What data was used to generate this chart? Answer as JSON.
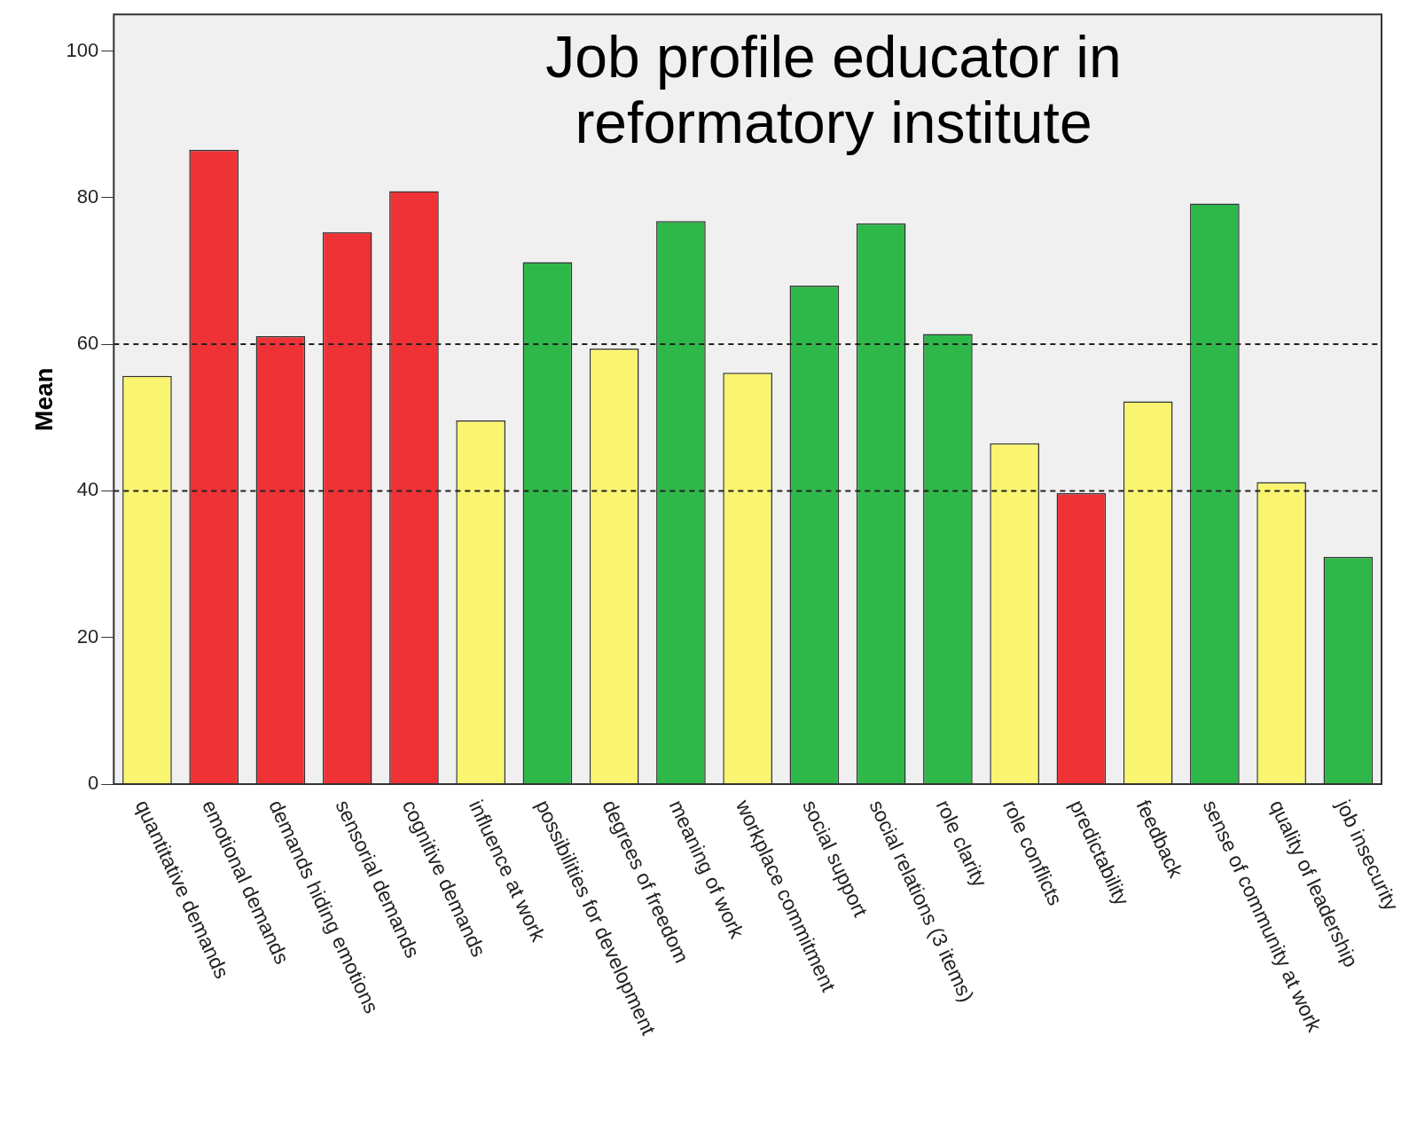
{
  "chart_data": {
    "type": "bar",
    "title": "Job profile educator in reformatory institute",
    "ylabel": "Mean",
    "categories": [
      "quantitative demands",
      "emotional demands",
      "demands hiding emotions",
      "sensorial demands",
      "cognitive demands",
      "influence at work",
      "possibilities for development",
      "degrees of freedom",
      "meaning of work",
      "workplace commitment",
      "social support",
      "social relations (3 items)",
      "role clarity",
      "role conflicts",
      "predictability",
      "feedback",
      "sense of community at work",
      "quality of leadership",
      "job insecurity"
    ],
    "values": [
      55.7,
      86.5,
      61.1,
      75.3,
      80.9,
      49.6,
      71.2,
      59.4,
      76.8,
      56.1,
      68.0,
      76.5,
      61.4,
      46.5,
      39.7,
      52.2,
      79.2,
      41.2,
      31.0
    ],
    "colors": [
      "#f9f571",
      "#ee3236",
      "#ee3236",
      "#ee3236",
      "#ee3236",
      "#f9f571",
      "#2fb84a",
      "#f9f571",
      "#2fb84a",
      "#f9f571",
      "#2fb84a",
      "#2fb84a",
      "#2fb84a",
      "#f9f571",
      "#ee3236",
      "#f9f571",
      "#2fb84a",
      "#f9f571",
      "#2fb84a"
    ],
    "ylim": [
      0,
      105
    ],
    "yticks": [
      0,
      20,
      40,
      60,
      80,
      100
    ],
    "legend": false,
    "ref_lines": [
      {
        "axis": "y",
        "value": 40,
        "color": "#222222",
        "line_style": "dashed"
      },
      {
        "axis": "y",
        "value": 60,
        "color": "#222222",
        "line_style": "dashed"
      }
    ]
  }
}
